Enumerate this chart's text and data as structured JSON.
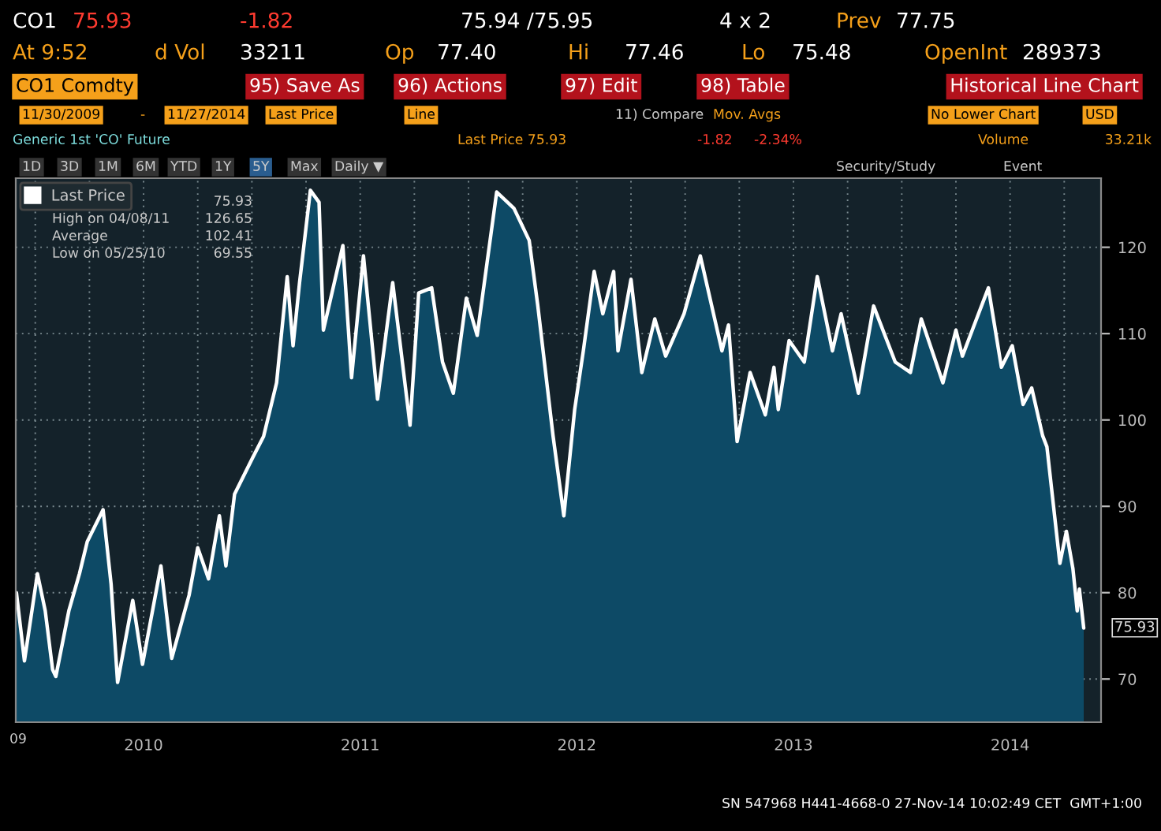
{
  "chart_data": {
    "type": "area",
    "series": [
      {
        "name": "Last Price",
        "color": "#ffffff",
        "x": [
          2009.913,
          2009.95,
          2010.01,
          2010.046,
          2010.08,
          2010.095,
          2010.155,
          2010.204,
          2010.24,
          2010.313,
          2010.35,
          2010.38,
          2010.45,
          2010.495,
          2010.58,
          2010.63,
          2010.71,
          2010.75,
          2010.8,
          2010.85,
          2010.88,
          2010.92,
          2011.005,
          2011.054,
          2011.114,
          2011.163,
          2011.19,
          2011.22,
          2011.27,
          2011.31,
          2011.33,
          2011.42,
          2011.46,
          2011.515,
          2011.58,
          2011.65,
          2011.73,
          2011.77,
          2011.83,
          2011.88,
          2011.93,
          2011.99,
          2012.04,
          2012.13,
          2012.21,
          2012.28,
          2012.32,
          2012.39,
          2012.44,
          2012.49,
          2012.53,
          2012.58,
          2012.62,
          2012.67,
          2012.69,
          2012.75,
          2012.8,
          2012.86,
          2012.91,
          2012.995,
          2013.07,
          2013.17,
          2013.2,
          2013.24,
          2013.3,
          2013.37,
          2013.41,
          2013.43,
          2013.48,
          2013.55,
          2013.61,
          2013.68,
          2013.72,
          2013.8,
          2013.87,
          2013.97,
          2014.04,
          2014.09,
          2014.14,
          2014.19,
          2014.25,
          2014.28,
          2014.33,
          2014.4,
          2014.46,
          2014.51,
          2014.56,
          2014.6,
          2014.65,
          2014.67,
          2014.73,
          2014.76,
          2014.79,
          2014.81,
          2014.82,
          2014.84
        ],
        "values": [
          80.0,
          72.1,
          82.2,
          77.9,
          71.1,
          70.3,
          77.9,
          82.2,
          85.9,
          89.6,
          81.0,
          69.6,
          79.1,
          71.7,
          83.1,
          72.4,
          79.7,
          85.2,
          81.6,
          88.9,
          83.1,
          91.4,
          95.7,
          98.1,
          104.3,
          116.6,
          108.6,
          115.9,
          126.6,
          125.2,
          110.4,
          120.2,
          104.9,
          119.0,
          102.4,
          115.9,
          99.4,
          114.7,
          115.3,
          106.7,
          103.1,
          114.1,
          109.8,
          126.4,
          124.5,
          120.8,
          113.2,
          98.2,
          88.9,
          101.2,
          108.0,
          117.2,
          112.3,
          117.2,
          108.0,
          116.3,
          105.5,
          111.7,
          107.4,
          112.3,
          119.0,
          108.0,
          111.0,
          97.5,
          105.5,
          100.6,
          106.1,
          101.2,
          109.2,
          106.7,
          116.6,
          108.0,
          112.3,
          103.1,
          113.2,
          106.7,
          105.5,
          111.7,
          108.0,
          104.3,
          110.4,
          107.4,
          110.7,
          115.3,
          106.1,
          108.6,
          101.8,
          103.7,
          98.2,
          96.9,
          83.4,
          87.1,
          82.8,
          77.9,
          80.4,
          75.9
        ]
      }
    ],
    "xlim": [
      2009.91,
      2014.92
    ],
    "xticks": [
      {
        "value": 2010.0,
        "label": null
      },
      {
        "value": 2010.25,
        "label": null
      },
      {
        "value": 2010.5,
        "label": "2010"
      },
      {
        "value": 2010.75,
        "label": null
      },
      {
        "value": 2011.0,
        "label": null
      },
      {
        "value": 2011.25,
        "label": null
      },
      {
        "value": 2011.5,
        "label": "2011"
      },
      {
        "value": 2011.75,
        "label": null
      },
      {
        "value": 2012.0,
        "label": null
      },
      {
        "value": 2012.25,
        "label": null
      },
      {
        "value": 2012.5,
        "label": "2012"
      },
      {
        "value": 2012.75,
        "label": null
      },
      {
        "value": 2013.0,
        "label": null
      },
      {
        "value": 2013.25,
        "label": null
      },
      {
        "value": 2013.5,
        "label": "2013"
      },
      {
        "value": 2013.75,
        "label": null
      },
      {
        "value": 2014.0,
        "label": null
      },
      {
        "value": 2014.25,
        "label": null
      },
      {
        "value": 2014.5,
        "label": "2014"
      },
      {
        "value": 2014.75,
        "label": null
      }
    ],
    "ylim": [
      65,
      128
    ],
    "yticks": [
      70,
      80,
      90,
      100,
      110,
      120
    ],
    "grid": true,
    "legend": "top left",
    "annotations": [
      "CO1",
      "75.93",
      "-1.82",
      "75.94 /75.95",
      "4 x 2",
      "Prev",
      "77.75",
      "At 9:52",
      "d Vol",
      "33211",
      "Op",
      "77.40",
      "Hi",
      "77.46",
      "Lo",
      "75.48",
      "OpenInt",
      "289373",
      "CO1 Comdty",
      "95) Save As",
      "96) Actions",
      "97) Edit",
      "98) Table",
      "Historical Line Chart",
      "11/30/2009",
      "-",
      "11/27/2014",
      "Last Price",
      "Line",
      "11) Compare",
      "Mov. Avgs",
      "No Lower Chart",
      "USD",
      "Generic 1st 'CO' Future",
      "Last Price 75.93",
      "-1.82",
      "-2.34%",
      "Volume",
      "33.21k",
      "1D",
      "3D",
      "1M",
      "6M",
      "YTD",
      "1Y",
      "5Y",
      "Max",
      "Daily ▼",
      "Security/Study",
      "Event",
      "75.93",
      "High on 04/08/11",
      "126.65",
      "Average",
      "102.41",
      "Low on 05/25/10",
      "69.55",
      "SN 547968 H441-4668-0 27-Nov-14 10:02:49 CET  GMT+1:00",
      "09",
      {
        "text": "75.93",
        "x": 2014.84,
        "y": 75.93
      }
    ]
  }
}
